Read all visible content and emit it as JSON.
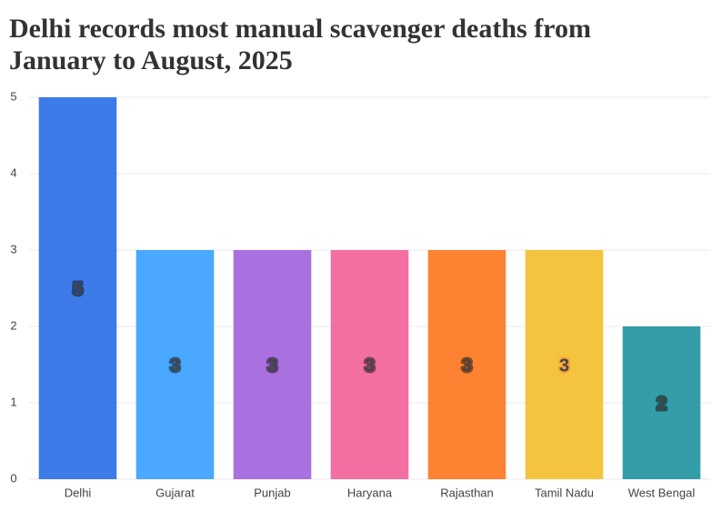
{
  "chart_data": {
    "type": "bar",
    "title": "Delhi records most manual scavenger deaths from January to August, 2025",
    "categories": [
      "Delhi",
      "Gujarat",
      "Punjab",
      "Haryana",
      "Rajasthan",
      "Tamil Nadu",
      "West Bengal"
    ],
    "values": [
      5,
      3,
      3,
      3,
      3,
      3,
      2
    ],
    "colors": [
      "#3d7be8",
      "#4aa8ff",
      "#a970e0",
      "#f46fa1",
      "#fd8333",
      "#f4c43e",
      "#339ea8"
    ],
    "ylim": [
      0,
      5
    ],
    "yticks": [
      0,
      1,
      2,
      3,
      4,
      5
    ],
    "grid": true
  }
}
